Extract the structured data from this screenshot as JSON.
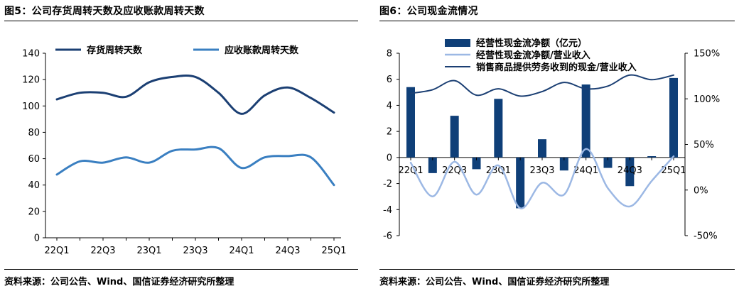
{
  "left": {
    "title": "图5：公司存货周转天数及应收账款周转天数",
    "source": "资料来源：公司公告、Wind、国信证券经济研究所整理"
  },
  "right": {
    "title": "图6：公司现金流情况",
    "source": "资料来源：公司公告、Wind、国信证券经济研究所整理"
  },
  "colors": {
    "dark_navy": "#1b3f73",
    "medium_blue": "#3a7fc1",
    "light_blue": "#9cb8e4",
    "bar_navy": "#0f3f78"
  },
  "chart_data": [
    {
      "type": "line",
      "categories": [
        "22Q1",
        "22Q2",
        "22Q3",
        "22Q4",
        "23Q1",
        "23Q2",
        "23Q3",
        "23Q4",
        "24Q1",
        "24Q2",
        "24Q3",
        "24Q4",
        "25Q1"
      ],
      "tick_labels": [
        "22Q1",
        "22Q3",
        "23Q1",
        "23Q3",
        "24Q1",
        "24Q3",
        "25Q1"
      ],
      "ylim": [
        0,
        140
      ],
      "yticks": [
        0,
        20,
        40,
        60,
        80,
        100,
        120,
        140
      ],
      "legend_position": "top",
      "series": [
        {
          "name": "存货周转天数",
          "values": [
            105,
            110,
            110,
            107,
            118,
            122,
            122,
            110,
            94,
            108,
            114,
            106,
            95
          ]
        },
        {
          "name": "应收账款周转天数",
          "values": [
            48,
            58,
            57,
            61,
            57,
            66,
            67,
            68,
            53,
            61,
            62,
            61,
            40
          ]
        }
      ]
    },
    {
      "type": "bar",
      "categories": [
        "22Q1",
        "22Q2",
        "22Q3",
        "22Q4",
        "23Q1",
        "23Q2",
        "23Q3",
        "23Q4",
        "24Q1",
        "24Q2",
        "24Q3",
        "24Q4",
        "25Q1"
      ],
      "tick_labels": [
        "22Q1",
        "22Q3",
        "23Q1",
        "23Q3",
        "24Q1",
        "24Q3",
        "25Q1"
      ],
      "ylim": [
        -6,
        8
      ],
      "yticks": [
        -6,
        -4,
        -2,
        0,
        2,
        4,
        6,
        8
      ],
      "y2lim": [
        -50,
        150
      ],
      "y2ticks": [
        "-50%",
        "0%",
        "50%",
        "100%",
        "150%"
      ],
      "y2tick_values": [
        -50,
        0,
        50,
        100,
        150
      ],
      "legend_position": "top",
      "series": [
        {
          "name": "经营性现金流净额（亿元）",
          "type": "bar",
          "axis": "left",
          "values": [
            5.4,
            -1.2,
            3.2,
            -0.9,
            4.5,
            -3.9,
            1.4,
            -1.0,
            5.6,
            -0.8,
            -2.2,
            0.1,
            6.1
          ]
        },
        {
          "name": "经营性现金流净额/营业收入",
          "type": "line",
          "axis": "right",
          "values": [
            30,
            -7,
            31,
            -5,
            27,
            -20,
            8,
            -5,
            45,
            2,
            -18,
            10,
            37
          ]
        },
        {
          "name": "销售商品提供劳务收到的现金/营业收入",
          "type": "line",
          "axis": "right",
          "values": [
            106,
            110,
            120,
            104,
            111,
            103,
            108,
            118,
            111,
            114,
            126,
            121,
            126
          ]
        }
      ]
    }
  ]
}
